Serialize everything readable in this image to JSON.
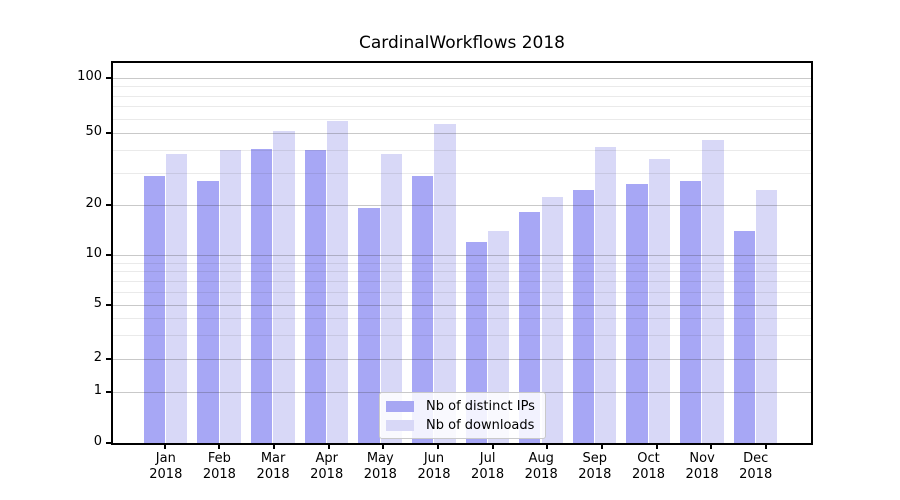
{
  "title": "CardinalWorkflows 2018",
  "chart_data": {
    "type": "bar",
    "title": "CardinalWorkflows 2018",
    "categories": [
      "Jan 2018",
      "Feb 2018",
      "Mar 2018",
      "Apr 2018",
      "May 2018",
      "Jun 2018",
      "Jul 2018",
      "Aug 2018",
      "Sep 2018",
      "Oct 2018",
      "Nov 2018",
      "Dec 2018"
    ],
    "x_tick_months": [
      "Jan",
      "Feb",
      "Mar",
      "Apr",
      "May",
      "Jun",
      "Jul",
      "Aug",
      "Sep",
      "Oct",
      "Nov",
      "Dec"
    ],
    "x_tick_year": "2018",
    "series": [
      {
        "name": "Nb of distinct IPs",
        "color": "#a7a7f3",
        "base_rgba": "rgba(108,108,238,0.6)",
        "values": [
          29,
          27,
          41,
          40,
          19,
          29,
          12,
          18,
          24,
          26,
          27,
          14
        ]
      },
      {
        "name": "Nb of downloads",
        "color": "#d8d8f7",
        "base_rgba": "rgba(190,190,242,0.6)",
        "values": [
          38,
          40,
          51,
          58,
          38,
          56,
          14,
          22,
          42,
          36,
          46,
          24
        ]
      }
    ],
    "y_axis": {
      "scale": "symlog",
      "major_ticks": [
        0,
        1,
        2,
        5,
        10,
        20,
        50,
        100
      ],
      "minor_gridlines": [
        3,
        4,
        6,
        7,
        8,
        9,
        30,
        40,
        60,
        70,
        80,
        90
      ],
      "range": [
        0,
        121
      ]
    },
    "xlabel": "",
    "ylabel": "",
    "grid": true,
    "grid_major_color": "#c8c8c8",
    "grid_minor_color": "#e9e9e9",
    "legend_position": "lower center"
  }
}
